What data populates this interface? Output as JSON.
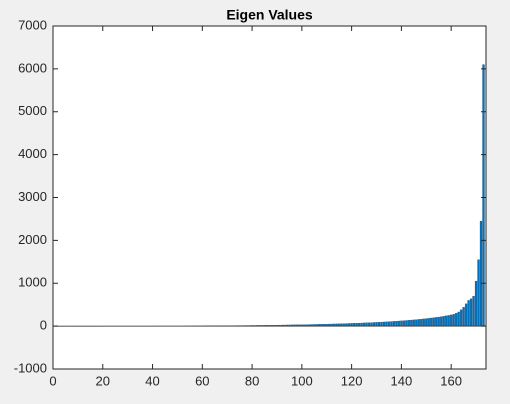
{
  "chart_data": {
    "type": "bar",
    "title": "Eigen Values",
    "values": [
      0,
      0,
      0,
      0,
      0,
      0,
      0,
      0,
      0,
      0,
      0,
      0,
      0,
      0,
      0,
      0,
      0,
      0,
      0,
      0,
      1,
      1,
      1,
      1,
      1,
      1,
      1,
      1,
      1,
      1,
      1,
      1,
      1,
      1,
      1,
      1,
      1,
      1,
      1,
      1,
      2,
      2,
      2,
      2,
      2,
      2,
      2,
      2,
      2,
      2,
      3,
      3,
      4,
      4,
      4,
      5,
      5,
      5,
      6,
      6,
      6,
      7,
      7,
      7,
      8,
      8,
      9,
      9,
      10,
      10,
      11,
      11,
      12,
      12,
      13,
      13,
      14,
      14,
      15,
      16,
      16,
      17,
      18,
      18,
      19,
      20,
      21,
      22,
      22,
      23,
      24,
      25,
      26,
      27,
      28,
      29,
      30,
      31,
      32,
      33,
      34,
      35,
      36,
      38,
      39,
      40,
      42,
      43,
      45,
      46,
      48,
      49,
      51,
      53,
      54,
      56,
      58,
      60,
      62,
      64,
      66,
      68,
      70,
      72,
      75,
      77,
      80,
      82,
      85,
      88,
      91,
      94,
      97,
      100,
      104,
      107,
      111,
      115,
      119,
      123,
      127,
      131,
      136,
      141,
      146,
      151,
      157,
      163,
      169,
      175,
      182,
      189,
      196,
      204,
      212,
      221,
      230,
      240,
      250,
      262,
      275,
      300,
      330,
      380,
      440,
      520,
      600,
      640,
      700,
      1050,
      1550,
      2450,
      6100
    ],
    "color": "#0072bd",
    "xlim": [
      0,
      174
    ],
    "xticks": [
      0,
      20,
      40,
      60,
      80,
      100,
      120,
      140,
      160
    ],
    "ylim": [
      -1000,
      7000
    ],
    "yticks": [
      -1000,
      0,
      1000,
      2000,
      3000,
      4000,
      5000,
      6000,
      7000
    ]
  }
}
